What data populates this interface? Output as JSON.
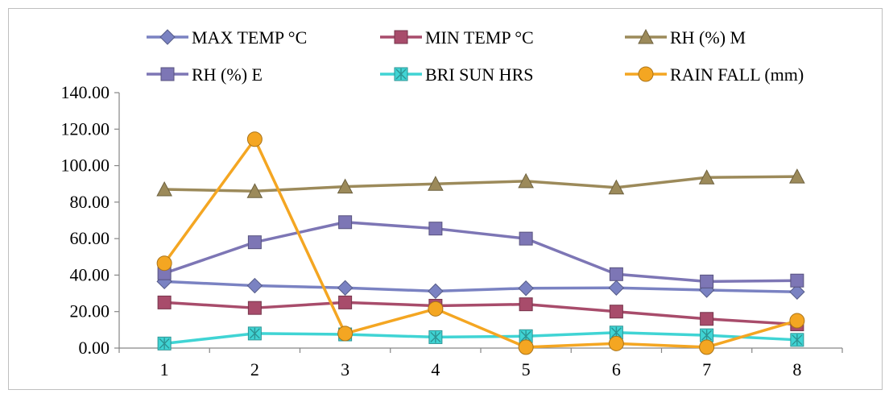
{
  "chart_data": {
    "type": "line",
    "title": "",
    "xlabel": "",
    "ylabel": "",
    "x": [
      1,
      2,
      3,
      4,
      5,
      6,
      7,
      8
    ],
    "ylim": [
      0,
      140
    ],
    "yticks": [
      "0.00",
      "20.00",
      "40.00",
      "60.00",
      "80.00",
      "100.00",
      "120.00",
      "140.00"
    ],
    "xticks": [
      "1",
      "2",
      "3",
      "4",
      "5",
      "6",
      "7",
      "8"
    ],
    "grid": false,
    "legend_position": "top",
    "series": [
      {
        "name": "MAX TEMP °C",
        "color": "#7a82c2",
        "marker": "diamond",
        "values": [
          36.5,
          34.2,
          33.0,
          31.2,
          32.8,
          33.0,
          31.8,
          30.8
        ]
      },
      {
        "name": "MIN TEMP °C",
        "color": "#a84c6b",
        "marker": "square",
        "values": [
          25.0,
          22.0,
          25.0,
          23.2,
          24.0,
          20.0,
          16.0,
          13.0
        ]
      },
      {
        "name": "RH (%) M",
        "color": "#9c8a5a",
        "marker": "triangle",
        "values": [
          87.0,
          86.0,
          88.5,
          90.0,
          91.5,
          88.0,
          93.5,
          94.0
        ]
      },
      {
        "name": "RH (%) E",
        "color": "#7d76b5",
        "marker": "square",
        "values": [
          41.0,
          58.0,
          69.0,
          65.5,
          60.0,
          40.5,
          36.5,
          37.0
        ]
      },
      {
        "name": "BRI SUN HRS",
        "color": "#40d4d4",
        "marker": "star",
        "values": [
          2.5,
          8.0,
          7.5,
          6.0,
          6.5,
          8.5,
          7.0,
          4.5
        ]
      },
      {
        "name": "RAIN FALL (mm)",
        "color": "#f4a622",
        "marker": "circle",
        "values": [
          46.5,
          114.5,
          8.0,
          21.5,
          0.5,
          2.5,
          0.5,
          15.0
        ]
      }
    ]
  }
}
